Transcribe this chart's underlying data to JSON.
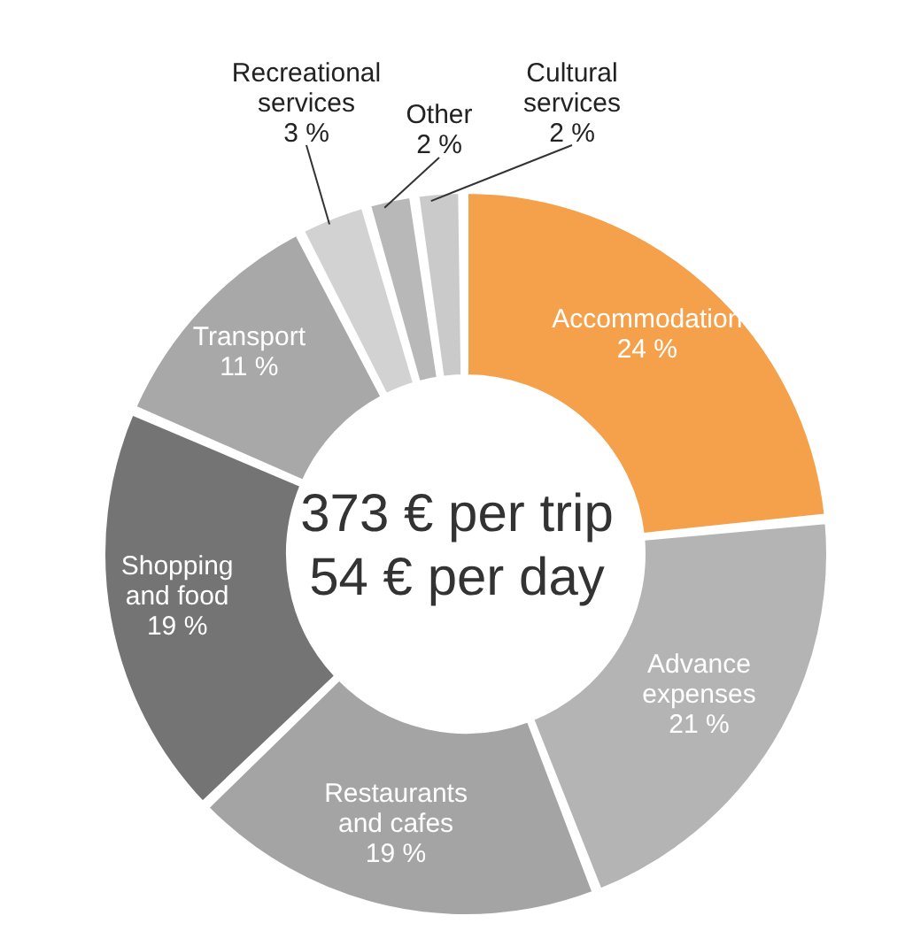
{
  "chart_data": {
    "type": "donut",
    "categories": [
      "Accommodation",
      "Advance expenses",
      "Restaurants and cafes",
      "Shopping and food",
      "Transport",
      "Recreational services",
      "Other",
      "Cultural services"
    ],
    "values": [
      24,
      21,
      19,
      19,
      11,
      3,
      2,
      2
    ],
    "value_labels": [
      "24 %",
      "21 %",
      "19 %",
      "19 %",
      "11 %",
      "3 %",
      "2 %",
      "2 %"
    ],
    "colors": [
      "#f5a04a",
      "#b4b4b4",
      "#a4a4a4",
      "#747474",
      "#a8a8a8",
      "#d2d2d2",
      "#b8b8b8",
      "#cacaca"
    ],
    "annotations": [
      "373 € per trip",
      "54 € per day"
    ],
    "legend": false
  }
}
